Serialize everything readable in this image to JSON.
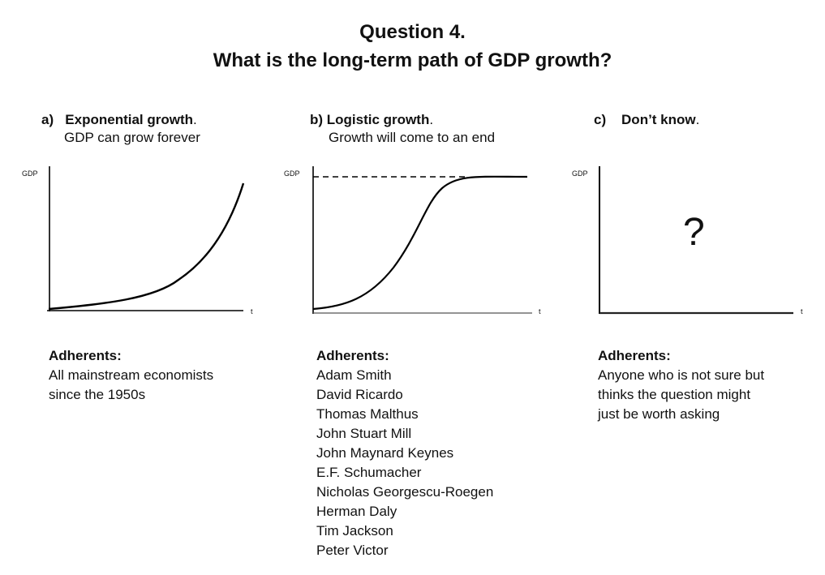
{
  "title": {
    "line1": "Question 4.",
    "line2": "What is the long-term path of GDP growth?"
  },
  "options": {
    "a": {
      "letter": "a)",
      "heading": "Exponential growth",
      "period": ".",
      "subtitle": "GDP can grow forever",
      "y_axis_label": "GDP",
      "x_axis_label": "t",
      "adherents_heading": "Adherents:",
      "adherents": [
        "All mainstream economists",
        "since the 1950s"
      ]
    },
    "b": {
      "letter": "b)",
      "heading": "Logistic growth",
      "period": ".",
      "subtitle": "Growth will come to an end",
      "y_axis_label": "GDP",
      "x_axis_label": "t",
      "adherents_heading": "Adherents:",
      "adherents": [
        "Adam Smith",
        "David Ricardo",
        "Thomas Malthus",
        "John Stuart Mill",
        "John Maynard Keynes",
        "E.F. Schumacher",
        "Nicholas Georgescu-Roegen",
        "Herman Daly",
        "Tim Jackson",
        "Peter Victor"
      ]
    },
    "c": {
      "letter": "c)",
      "heading": "Don’t know",
      "period": ".",
      "y_axis_label": "GDP",
      "x_axis_label": "t",
      "question_mark": "?",
      "adherents_heading": "Adherents:",
      "adherents": [
        "Anyone who is not sure but",
        "thinks the question might",
        "just be worth asking"
      ]
    }
  }
}
